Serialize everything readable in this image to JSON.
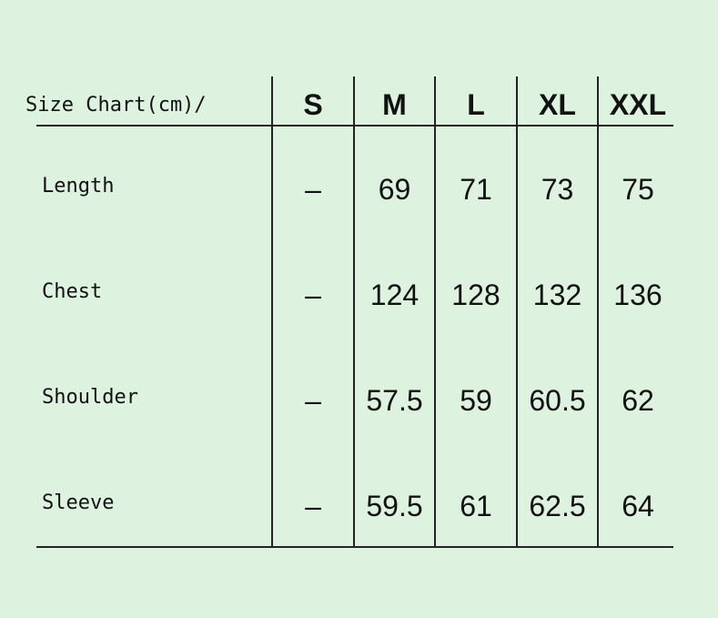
{
  "table": {
    "header": [
      "Size Chart(cm)/",
      "S",
      "M",
      "L",
      "XL",
      "XXL"
    ],
    "rows": [
      [
        "Length",
        "–",
        "69",
        "71",
        "73",
        "75"
      ],
      [
        "Chest",
        "–",
        "124",
        "128",
        "132",
        "136"
      ],
      [
        "Shoulder",
        "–",
        "57.5",
        "59",
        "60.5",
        "62"
      ],
      [
        "Sleeve",
        "–",
        "59.5",
        "61",
        "62.5",
        "64"
      ]
    ]
  }
}
